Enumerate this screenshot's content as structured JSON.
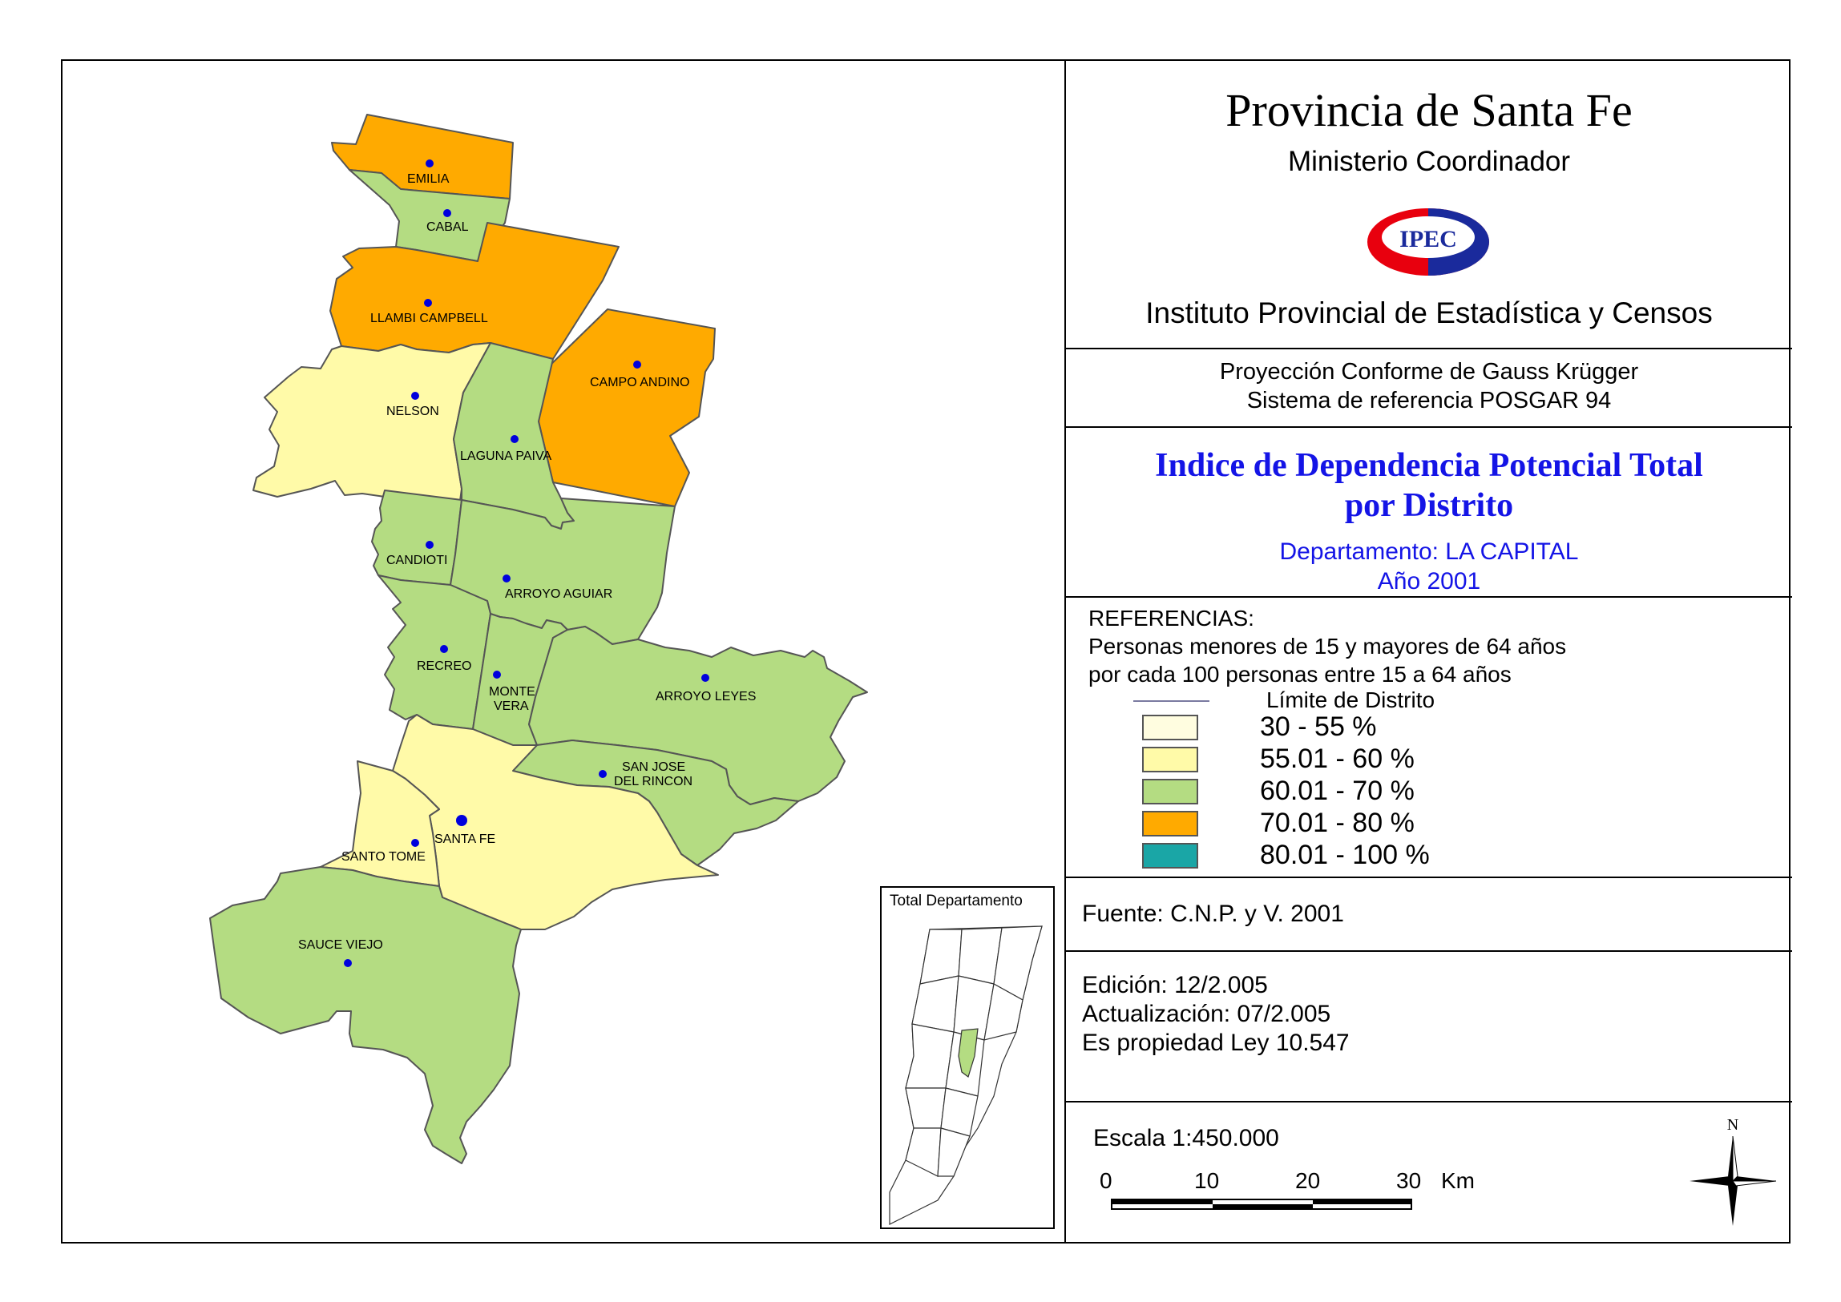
{
  "header": {
    "title": "Provincia de Santa Fe",
    "ministerio": "Ministerio Coordinador",
    "logo_text": "IPEC",
    "instituto": "Instituto Provincial de Estadística y Censos"
  },
  "projection": {
    "line1": "Proyección Conforme de Gauss Krügger",
    "line2": "Sistema de referencia POSGAR 94"
  },
  "map_title": {
    "line1": "Indice de Dependencia Potencial Total",
    "line2": "por Distrito",
    "departamento": "Departamento:  LA CAPITAL",
    "anio": "Año 2001"
  },
  "references": {
    "heading": "REFERENCIAS:",
    "desc1": "Personas menores de 15 y mayores de 64 años",
    "desc2": "por cada 100 personas entre 15 a 64 años",
    "limite": "Límite de Distrito",
    "classes": [
      {
        "label": "30 - 55 %",
        "color": "#fffde0"
      },
      {
        "label": "55.01 - 60 %",
        "color": "#fffaa8"
      },
      {
        "label": "60.01 - 70 %",
        "color": "#b4dc82"
      },
      {
        "label": "70.01 - 80 %",
        "color": "#ffaa00"
      },
      {
        "label": "80.01 - 100 %",
        "color": "#1aa6a6"
      }
    ]
  },
  "source": {
    "fuente": "Fuente:  C.N.P. y V. 2001"
  },
  "edition": {
    "edicion": "Edición:  12/2.005",
    "actualizacion": "Actualización:  07/2.005",
    "propiedad": "Es propiedad Ley 10.547"
  },
  "scale": {
    "label": "Escala 1:450.000",
    "ticks": [
      "0",
      "10",
      "20",
      "30"
    ],
    "unit": "Km"
  },
  "north": "N",
  "inset": {
    "label": "Total Departamento"
  },
  "districts": [
    {
      "name": "EMILIA",
      "class": "70.01 - 80 %"
    },
    {
      "name": "CABAL",
      "class": "60.01 - 70 %"
    },
    {
      "name": "LLAMBI CAMPBELL",
      "class": "70.01 - 80 %"
    },
    {
      "name": "CAMPO ANDINO",
      "class": "70.01 - 80 %"
    },
    {
      "name": "NELSON",
      "class": "55.01 - 60 %"
    },
    {
      "name": "LAGUNA PAIVA",
      "class": "60.01 - 70 %"
    },
    {
      "name": "CANDIOTI",
      "class": "60.01 - 70 %"
    },
    {
      "name": "ARROYO AGUIAR",
      "class": "60.01 - 70 %"
    },
    {
      "name": "RECREO",
      "class": "60.01 - 70 %"
    },
    {
      "name": "MONTE",
      "name2": "VERA",
      "class": "60.01 - 70 %"
    },
    {
      "name": "ARROYO LEYES",
      "class": "60.01 - 70 %"
    },
    {
      "name": "SAN JOSE",
      "name2": "DEL RINCON",
      "class": "60.01 - 70 %"
    },
    {
      "name": "SANTA FE",
      "class": "55.01 - 60 %"
    },
    {
      "name": "SANTO TOME",
      "class": "55.01 - 60 %"
    },
    {
      "name": "SAUCE VIEJO",
      "class": "60.01 - 70 %"
    }
  ]
}
